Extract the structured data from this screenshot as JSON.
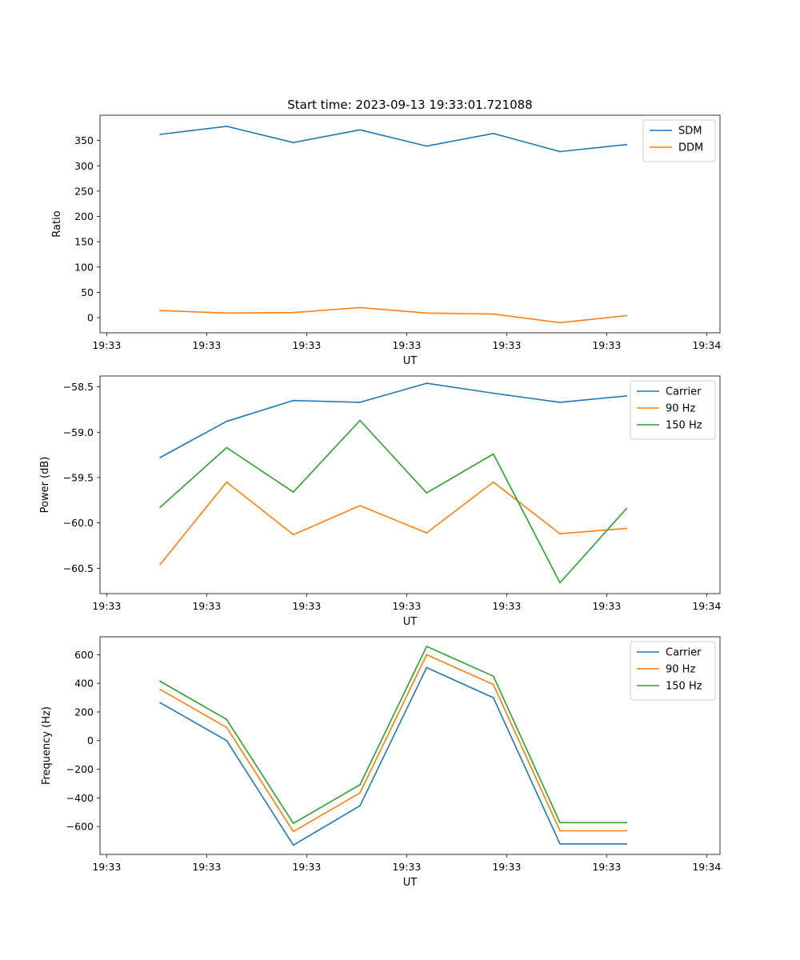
{
  "figure_title": "Start time: 2023-09-13 19:33:01.721088",
  "chart_data": [
    {
      "type": "line",
      "title": "Start time: 2023-09-13 19:33:01.721088",
      "xlabel": "UT",
      "ylabel": "Ratio",
      "x": [
        0.9,
        1.9,
        2.9,
        3.9,
        4.9,
        5.9,
        6.9,
        7.9
      ],
      "xlim": [
        0,
        9.3
      ],
      "xticks": [
        0.1,
        1.6,
        3.1,
        4.6,
        6.1,
        7.6,
        9.1
      ],
      "xtick_labels": [
        "19:33",
        "19:33",
        "19:33",
        "19:33",
        "19:33",
        "19:33",
        "19:34"
      ],
      "ylim": [
        -30,
        400
      ],
      "yticks": [
        0,
        50,
        100,
        150,
        200,
        250,
        300,
        350
      ],
      "ytick_labels": [
        "0",
        "50",
        "100",
        "150",
        "200",
        "250",
        "300",
        "350"
      ],
      "legend_position": "top-right",
      "series": [
        {
          "name": "SDM",
          "color": "#1f77b4",
          "values": [
            362,
            378,
            346,
            371,
            339,
            364,
            328,
            342
          ]
        },
        {
          "name": "DDM",
          "color": "#ff7f0e",
          "values": [
            14,
            9,
            10,
            20,
            9,
            7,
            -10,
            4
          ]
        }
      ]
    },
    {
      "type": "line",
      "xlabel": "UT",
      "ylabel": "Power (dB)",
      "x": [
        0.9,
        1.9,
        2.9,
        3.9,
        4.9,
        5.9,
        6.9,
        7.9
      ],
      "xlim": [
        0,
        9.3
      ],
      "xticks": [
        0.1,
        1.6,
        3.1,
        4.6,
        6.1,
        7.6,
        9.1
      ],
      "xtick_labels": [
        "19:33",
        "19:33",
        "19:33",
        "19:33",
        "19:33",
        "19:33",
        "19:34"
      ],
      "ylim": [
        -60.78,
        -58.38
      ],
      "yticks": [
        -60.5,
        -60.0,
        -59.5,
        -59.0,
        -58.5
      ],
      "ytick_labels": [
        "−60.5",
        "−60.0",
        "−59.5",
        "−59.0",
        "−58.5"
      ],
      "legend_position": "top-right",
      "series": [
        {
          "name": "Carrier",
          "color": "#1f77b4",
          "values": [
            -59.28,
            -58.88,
            -58.65,
            -58.67,
            -58.46,
            -58.57,
            -58.67,
            -58.6
          ]
        },
        {
          "name": "90 Hz",
          "color": "#ff7f0e",
          "values": [
            -60.46,
            -59.55,
            -60.13,
            -59.81,
            -60.11,
            -59.55,
            -60.12,
            -60.06
          ]
        },
        {
          "name": "150 Hz",
          "color": "#2ca02c",
          "values": [
            -59.83,
            -59.17,
            -59.66,
            -58.87,
            -59.67,
            -59.24,
            -60.66,
            -59.84
          ]
        }
      ]
    },
    {
      "type": "line",
      "xlabel": "UT",
      "ylabel": "Frequency (Hz)",
      "x": [
        0.9,
        1.9,
        2.9,
        3.9,
        4.9,
        5.9,
        6.9,
        7.9
      ],
      "xlim": [
        0,
        9.3
      ],
      "xticks": [
        0.1,
        1.6,
        3.1,
        4.6,
        6.1,
        7.6,
        9.1
      ],
      "xtick_labels": [
        "19:33",
        "19:33",
        "19:33",
        "19:33",
        "19:33",
        "19:33",
        "19:34"
      ],
      "ylim": [
        -795,
        725
      ],
      "yticks": [
        -600,
        -400,
        -200,
        0,
        200,
        400,
        600
      ],
      "ytick_labels": [
        "−600",
        "−400",
        "−200",
        "0",
        "200",
        "400",
        "600"
      ],
      "legend_position": "top-right",
      "series": [
        {
          "name": "Carrier",
          "color": "#1f77b4",
          "values": [
            265,
            0,
            -730,
            -455,
            510,
            300,
            -722,
            -722
          ]
        },
        {
          "name": "90 Hz",
          "color": "#ff7f0e",
          "values": [
            358,
            92,
            -635,
            -365,
            600,
            392,
            -630,
            -630
          ]
        },
        {
          "name": "150 Hz",
          "color": "#2ca02c",
          "values": [
            415,
            148,
            -578,
            -308,
            658,
            450,
            -573,
            -573
          ]
        }
      ]
    }
  ]
}
